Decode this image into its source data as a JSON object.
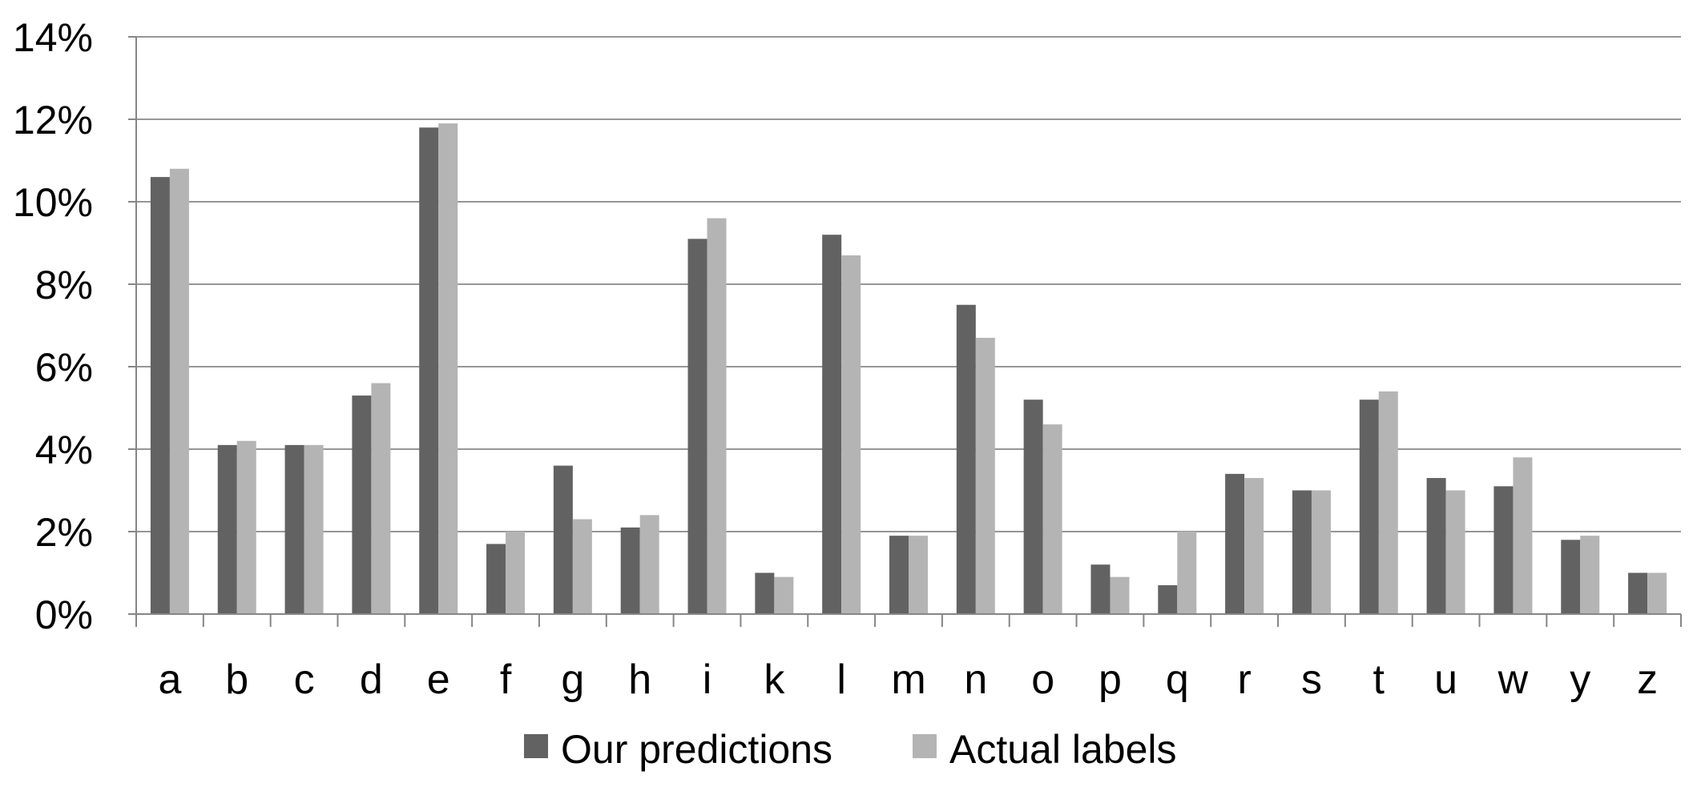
{
  "chart_data": {
    "type": "bar",
    "categories": [
      "a",
      "b",
      "c",
      "d",
      "e",
      "f",
      "g",
      "h",
      "i",
      "k",
      "l",
      "m",
      "n",
      "o",
      "p",
      "q",
      "r",
      "s",
      "t",
      "u",
      "w",
      "y",
      "z"
    ],
    "series": [
      {
        "name": "Our predictions",
        "color": "#626262",
        "values": [
          10.6,
          4.1,
          4.1,
          5.3,
          11.8,
          1.7,
          3.6,
          2.1,
          9.1,
          1.0,
          9.2,
          1.9,
          7.5,
          5.2,
          1.2,
          0.7,
          3.4,
          3.0,
          5.2,
          3.3,
          3.1,
          1.8,
          1.0
        ]
      },
      {
        "name": "Actual labels",
        "color": "#b4b4b4",
        "values": [
          10.8,
          4.2,
          4.1,
          5.6,
          11.9,
          2.0,
          2.3,
          2.4,
          9.6,
          0.9,
          8.7,
          1.9,
          6.7,
          4.6,
          0.9,
          2.0,
          3.3,
          3.0,
          5.4,
          3.0,
          3.8,
          1.9,
          1.0
        ]
      }
    ],
    "ylim": [
      0,
      14
    ],
    "yticks": [
      "0%",
      "2%",
      "4%",
      "6%",
      "8%",
      "10%",
      "12%",
      "14%"
    ],
    "ytick_values": [
      0,
      2,
      4,
      6,
      8,
      10,
      12,
      14
    ],
    "grid": true,
    "grid_color": "#969696",
    "legend_position": "bottom-center",
    "title": "",
    "xlabel": "",
    "ylabel": ""
  }
}
